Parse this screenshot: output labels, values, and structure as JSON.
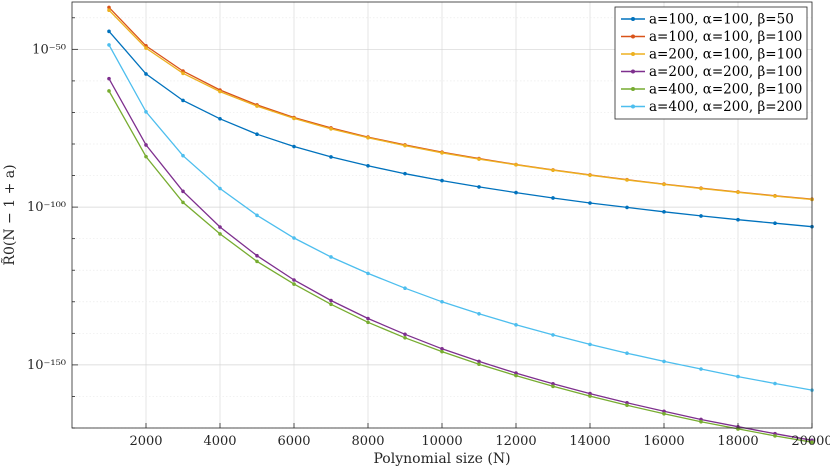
{
  "chart_data": {
    "type": "line",
    "title": "",
    "xlabel": "Polynomial size (N)",
    "ylabel": "R̃0(N − 1 + a)",
    "xlim": [
      0,
      20000
    ],
    "ylim_log10": [
      -170,
      -35
    ],
    "yscale": "log",
    "grid": true,
    "legend_position": "top-right",
    "x_ticks": [
      2000,
      4000,
      6000,
      8000,
      10000,
      12000,
      14000,
      16000,
      18000,
      20000
    ],
    "x_tick_labels": [
      "2000",
      "4000",
      "6000",
      "8000",
      "10000",
      "12000",
      "14000",
      "16000",
      "18000",
      "20000"
    ],
    "y_ticks_log10": [
      -50,
      -100,
      -150
    ],
    "y_tick_labels": [
      "10⁻⁵⁰",
      "10⁻¹⁰⁰",
      "10⁻¹⁵⁰"
    ],
    "x": [
      1000,
      2000,
      3000,
      4000,
      5000,
      6000,
      7000,
      8000,
      9000,
      10000,
      11000,
      12000,
      13000,
      14000,
      15000,
      16000,
      17000,
      18000,
      19000,
      20000
    ],
    "series": [
      {
        "name": "a=100, α=100, β=50",
        "color": "#0072BD",
        "log10_values": [
          -44.3,
          -57.8,
          -66.2,
          -72.0,
          -76.9,
          -80.8,
          -84.1,
          -86.9,
          -89.4,
          -91.6,
          -93.6,
          -95.4,
          -97.1,
          -98.7,
          -100.1,
          -101.5,
          -102.8,
          -104.0,
          -105.1,
          -106.2
        ]
      },
      {
        "name": "a=100, α=100, β=100",
        "color": "#D95319",
        "log10_values": [
          -36.7,
          -48.9,
          -56.9,
          -62.9,
          -67.6,
          -71.6,
          -74.9,
          -77.8,
          -80.3,
          -82.6,
          -84.6,
          -86.5,
          -88.2,
          -89.8,
          -91.3,
          -92.7,
          -94.0,
          -95.2,
          -96.4,
          -97.5
        ]
      },
      {
        "name": "a=200, α=100, β=100",
        "color": "#EDB120",
        "log10_values": [
          -37.6,
          -49.6,
          -57.6,
          -63.4,
          -68.0,
          -71.9,
          -75.2,
          -78.0,
          -80.5,
          -82.8,
          -84.8,
          -86.6,
          -88.3,
          -89.9,
          -91.4,
          -92.8,
          -94.1,
          -95.3,
          -96.5,
          -97.6
        ]
      },
      {
        "name": "a=200, α=200, β=100",
        "color": "#7E2F8E",
        "log10_values": [
          -59.3,
          -80.3,
          -95.0,
          -106.3,
          -115.4,
          -123.1,
          -129.6,
          -135.3,
          -140.3,
          -144.9,
          -148.9,
          -152.6,
          -156.0,
          -159.1,
          -162.0,
          -164.7,
          -167.3,
          -169.6,
          -171.8,
          -173.9
        ]
      },
      {
        "name": "a=400, α=200, β=100",
        "color": "#77AC30",
        "log10_values": [
          -63.2,
          -84.0,
          -98.5,
          -108.5,
          -117.2,
          -124.4,
          -130.8,
          -136.5,
          -141.4,
          -145.8,
          -149.8,
          -153.4,
          -156.8,
          -159.9,
          -162.8,
          -165.5,
          -168.0,
          -170.3,
          -172.5,
          -174.5
        ]
      },
      {
        "name": "a=400, α=200, β=200",
        "color": "#4DBEEE",
        "log10_values": [
          -48.6,
          -69.8,
          -83.7,
          -94.1,
          -102.6,
          -109.8,
          -115.8,
          -121.0,
          -125.7,
          -130.0,
          -133.8,
          -137.3,
          -140.5,
          -143.5,
          -146.3,
          -148.9,
          -151.3,
          -153.7,
          -155.9,
          -158.0
        ]
      }
    ]
  }
}
